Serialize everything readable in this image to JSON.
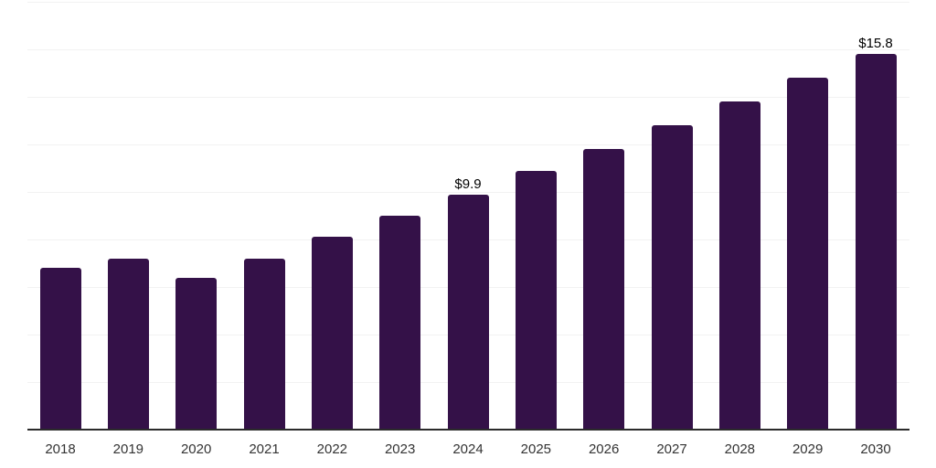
{
  "chart_data": {
    "type": "bar",
    "title": "",
    "xlabel": "",
    "ylabel": "",
    "categories": [
      "2018",
      "2019",
      "2020",
      "2021",
      "2022",
      "2023",
      "2024",
      "2025",
      "2026",
      "2027",
      "2028",
      "2029",
      "2030"
    ],
    "values": [
      6.8,
      7.2,
      6.4,
      7.2,
      8.1,
      9.0,
      9.9,
      10.9,
      11.8,
      12.8,
      13.8,
      14.8,
      15.8
    ],
    "value_labels": [
      {
        "category": "2024",
        "text": "$9.9"
      },
      {
        "category": "2030",
        "text": "$15.8"
      }
    ],
    "ylim": [
      0,
      18
    ],
    "grid_step": 2,
    "grid_visible": true,
    "y_tick_labels_visible": false,
    "legend": "none",
    "colors": {
      "bar": "#341148",
      "grid": "#f2f2f2",
      "axis": "#2b2b2b",
      "tick_label": "#333333",
      "value_label": "#000000",
      "background": "#ffffff"
    }
  }
}
